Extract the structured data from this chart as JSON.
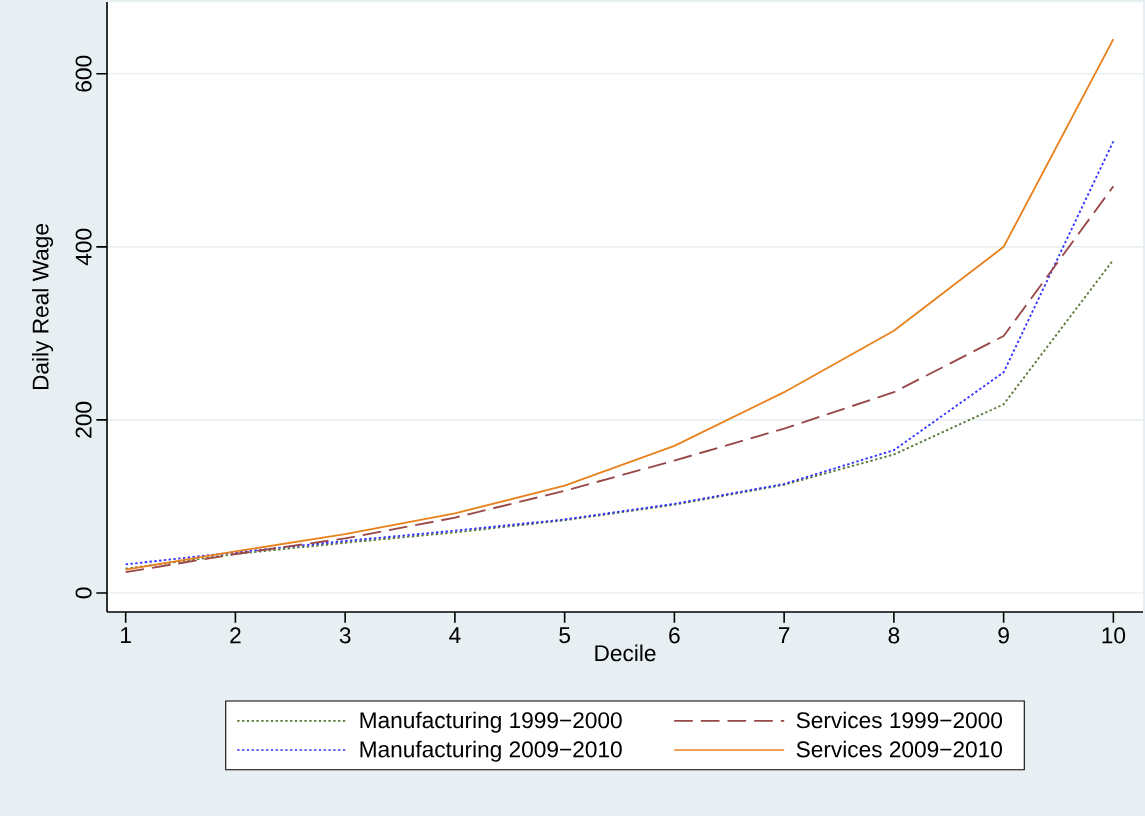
{
  "chart_data": {
    "type": "line",
    "xlabel": "Decile",
    "ylabel": "Daily Real Wage",
    "x": [
      1,
      2,
      3,
      4,
      5,
      6,
      7,
      8,
      9,
      10
    ],
    "series": [
      {
        "name": "Manufacturing 1999−2000",
        "color": "#5a7a3a",
        "line_style": "dotted",
        "values": [
          28,
          45,
          58,
          70,
          84,
          102,
          125,
          160,
          218,
          385
        ]
      },
      {
        "name": "Manufacturing 2009−2010",
        "color": "#3333ff",
        "line_style": "dotted",
        "values": [
          33,
          47,
          60,
          72,
          85,
          103,
          126,
          165,
          255,
          522
        ]
      },
      {
        "name": "Services 1999−2000",
        "color": "#984848",
        "line_style": "dashed",
        "values": [
          24,
          45,
          63,
          87,
          118,
          153,
          190,
          232,
          297,
          470
        ]
      },
      {
        "name": "Services 2009−2010",
        "color": "#e8821e",
        "line_style": "solid",
        "values": [
          27,
          48,
          68,
          92,
          124,
          170,
          232,
          303,
          400,
          640
        ]
      }
    ],
    "xlim": [
      0.83,
      10.27
    ],
    "ylim": [
      -22,
      683
    ],
    "xticks": [
      1,
      2,
      3,
      4,
      5,
      6,
      7,
      8,
      9,
      10
    ],
    "yticks": [
      0,
      200,
      400,
      600
    ],
    "grid": "y",
    "legend": "bottom",
    "marker": "none"
  }
}
